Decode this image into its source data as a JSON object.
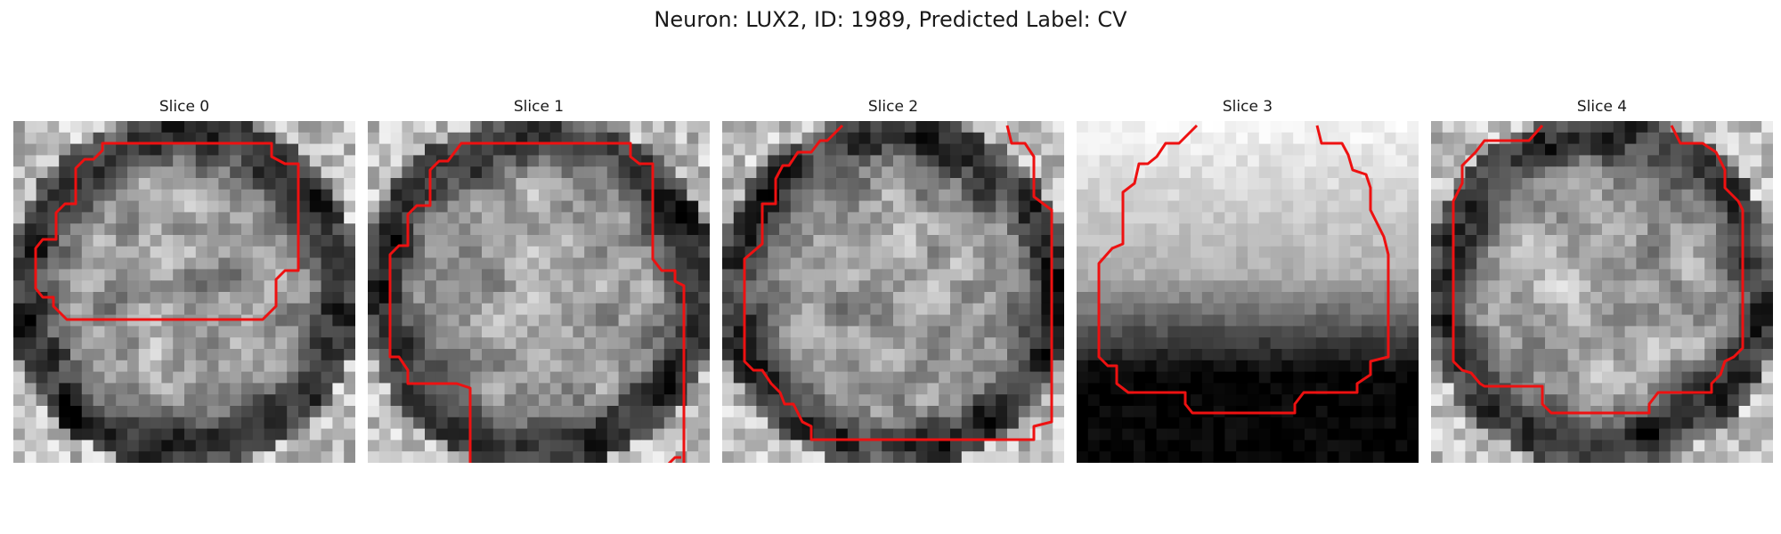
{
  "figure": {
    "title": "Neuron: LUX2, ID: 1989, Predicted Label: CV"
  },
  "panels": [
    {
      "title": "Slice 0",
      "content": "grayscale cell image slice with red contour outline",
      "style": "mottled"
    },
    {
      "title": "Slice 1",
      "content": "grayscale cell image slice with red contour outline",
      "style": "mottled"
    },
    {
      "title": "Slice 2",
      "content": "grayscale cell image slice with red contour outline",
      "style": "mottled"
    },
    {
      "title": "Slice 3",
      "content": "grayscale cell image slice with red contour outline",
      "style": "gradient"
    },
    {
      "title": "Slice 4",
      "content": "grayscale cell image slice with red contour outline",
      "style": "mottled"
    }
  ],
  "colors": {
    "contour": "#ee1111",
    "text": "#1a1a1a"
  }
}
